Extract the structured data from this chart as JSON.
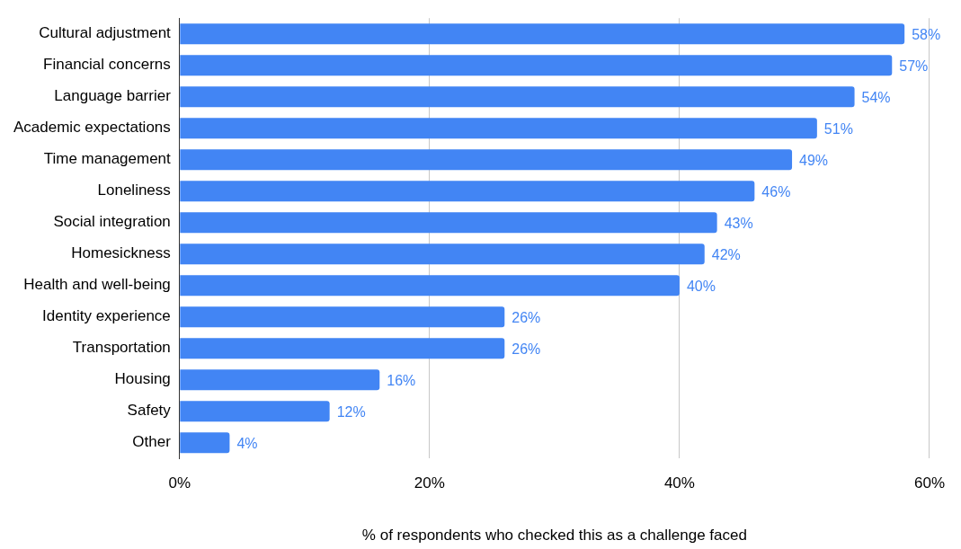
{
  "chart_data": {
    "type": "bar",
    "orientation": "horizontal",
    "xlabel": "% of respondents who checked this as a challenge faced",
    "categories": [
      "Cultural adjustment",
      "Financial concerns",
      "Language barrier",
      "Academic expectations",
      "Time management",
      "Loneliness",
      "Social integration",
      "Homesickness",
      "Health and well-being",
      "Identity experience",
      "Transportation",
      "Housing",
      "Safety",
      "Other"
    ],
    "values": [
      58,
      57,
      54,
      51,
      49,
      46,
      43,
      42,
      40,
      26,
      26,
      16,
      12,
      4
    ],
    "value_labels": [
      "58%",
      "57%",
      "54%",
      "51%",
      "49%",
      "46%",
      "43%",
      "42%",
      "40%",
      "26%",
      "26%",
      "16%",
      "12%",
      "4%"
    ],
    "color": "#4285f4",
    "xlim": [
      0,
      60
    ],
    "xticks": [
      {
        "value": 0,
        "label": "0%"
      },
      {
        "value": 20,
        "label": "20%"
      },
      {
        "value": 40,
        "label": "40%"
      },
      {
        "value": 60,
        "label": "60%"
      }
    ],
    "grid": "x",
    "legend": false
  }
}
